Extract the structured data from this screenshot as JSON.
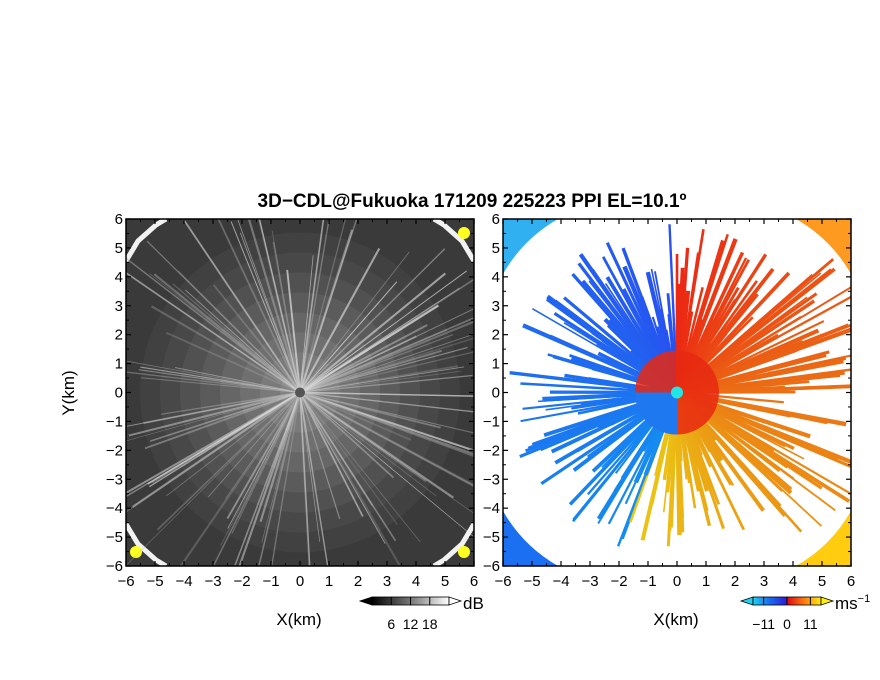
{
  "title": "3D−CDL@Fukuoka 171209 225223 PPI EL=10.1º",
  "colors": {
    "background": "#ffffff",
    "axis": "#000000",
    "highlight": "#ffff20",
    "radar_marker": "#22e6e6"
  },
  "chart_data": [
    {
      "type": "heatmap",
      "name": "snr-ppi",
      "xlabel": "X(km)",
      "ylabel": "Y(km)",
      "xlim": [
        -6,
        6
      ],
      "ylim": [
        -6,
        6
      ],
      "xticks": [
        "−6",
        "−5",
        "−4",
        "−3",
        "−2",
        "−1",
        "0",
        "1",
        "2",
        "3",
        "4",
        "5",
        "6"
      ],
      "yticks": [
        "6",
        "5",
        "4",
        "3",
        "2",
        "1",
        "0",
        "−1",
        "−2",
        "−3",
        "−4",
        "−5",
        "−6"
      ],
      "colorbar": {
        "unit": "dB",
        "ticks": [
          "6",
          "12",
          "18"
        ],
        "tick_values": [
          6,
          12,
          18
        ],
        "range": [
          0,
          24
        ],
        "colormap": "grayscale",
        "extend": "both"
      },
      "center": [
        0,
        0
      ]
    },
    {
      "type": "heatmap",
      "name": "doppler-velocity-ppi",
      "xlabel": "X(km)",
      "ylabel": "",
      "xlim": [
        -6,
        6
      ],
      "ylim": [
        -6,
        6
      ],
      "xticks": [
        "−6",
        "−5",
        "−4",
        "−3",
        "−2",
        "−1",
        "0",
        "1",
        "2",
        "3",
        "4",
        "5",
        "6"
      ],
      "yticks": [
        "6",
        "5",
        "4",
        "3",
        "2",
        "1",
        "0",
        "−1",
        "−2",
        "−3",
        "−4",
        "−5",
        "−6"
      ],
      "colorbar": {
        "unit": "ms",
        "unit_exponent": "−1",
        "ticks": [
          "−11",
          "0",
          "11"
        ],
        "tick_values": [
          -11,
          0,
          11
        ],
        "range": [
          -16,
          16
        ],
        "colormap": "blue-cyan-red-orange-yellow",
        "extend": "both"
      },
      "center": [
        0,
        0
      ]
    }
  ]
}
